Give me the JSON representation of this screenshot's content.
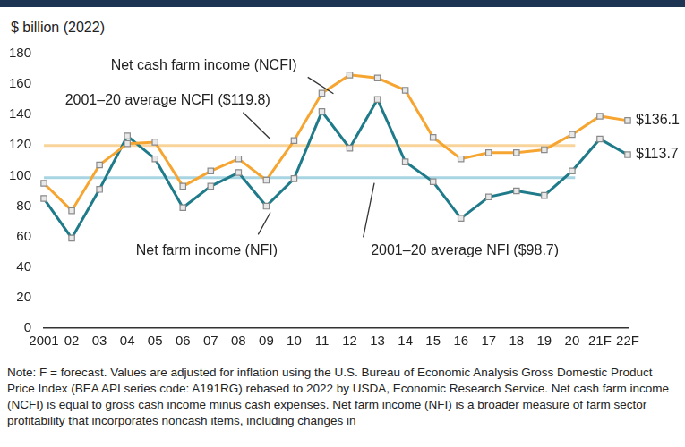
{
  "chart_data": {
    "type": "line",
    "y_label": "$ billion (2022)",
    "categories": [
      "2001",
      "02",
      "03",
      "04",
      "05",
      "06",
      "07",
      "08",
      "09",
      "10",
      "11",
      "12",
      "13",
      "14",
      "15",
      "16",
      "17",
      "18",
      "19",
      "20",
      "21F",
      "22F"
    ],
    "series": [
      {
        "name": "Net cash farm income (NCFI)",
        "color": "#f6a531",
        "marker": "square",
        "end_label": "$136.1",
        "values": [
          95,
          77,
          107,
          121,
          122,
          93,
          103,
          111,
          97,
          123,
          154,
          166,
          164,
          156,
          125,
          111,
          115,
          115,
          117,
          127,
          139,
          136.1
        ]
      },
      {
        "name": "Net farm income (NFI)",
        "color": "#1f7b8a",
        "marker": "square",
        "end_label": "$113.7",
        "values": [
          85,
          59,
          91,
          126,
          111,
          79,
          93,
          102,
          80,
          98,
          142,
          118,
          150,
          109,
          96,
          72,
          86,
          90,
          87,
          103,
          124,
          113.7
        ]
      }
    ],
    "reference_lines": [
      {
        "label": "2001–20 average NCFI ($119.8)",
        "value": 119.8,
        "color": "#f8d49a"
      },
      {
        "label": "2001–20 average NFI ($98.7)",
        "value": 98.7,
        "color": "#a8d5e2"
      }
    ],
    "ylim": [
      0,
      180
    ],
    "yticks": [
      0,
      20,
      40,
      60,
      80,
      100,
      120,
      140,
      160,
      180
    ],
    "grid": false,
    "note": "Note: F = forecast. Values are adjusted for inflation using the U.S. Bureau of Economic Analysis Gross Domestic Product Price Index (BEA API series code: A191RG) rebased to 2022 by USDA, Economic Research Service. Net cash farm income (NCFI) is equal to gross cash income minus cash expenses. Net farm income (NFI) is a broader measure of farm sector profitability that incorporates noncash items, including changes in"
  }
}
